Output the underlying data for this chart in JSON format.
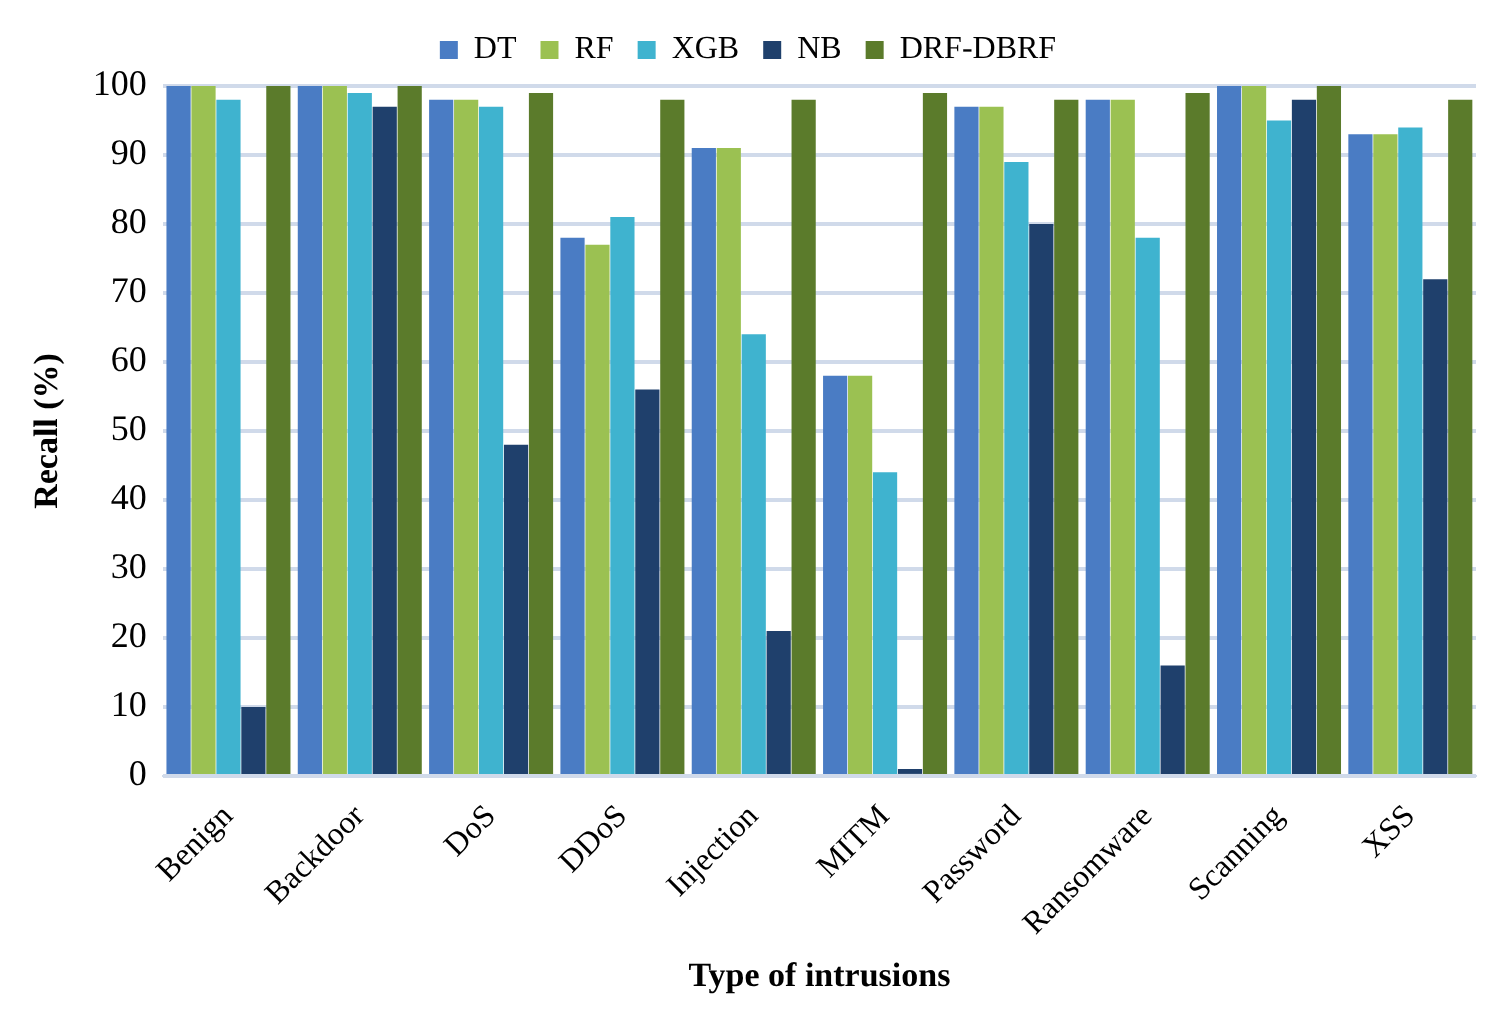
{
  "chart_data": {
    "type": "bar",
    "xlabel": "Type of intrusions",
    "ylabel": "Recall (%)",
    "categories": [
      "Benign",
      "Backdoor",
      "DoS",
      "DDoS",
      "Injection",
      "MITM",
      "Password",
      "Ransomware",
      "Scanning",
      "XSS"
    ],
    "series": [
      {
        "name": "DT",
        "color": "#4a7cc4",
        "values": [
          100,
          100,
          98,
          78,
          91,
          58,
          97,
          98,
          100,
          93
        ]
      },
      {
        "name": "RF",
        "color": "#9bc152",
        "values": [
          100,
          100,
          98,
          77,
          91,
          58,
          97,
          98,
          100,
          93
        ]
      },
      {
        "name": "XGB",
        "color": "#3fb3cf",
        "values": [
          98,
          99,
          97,
          81,
          64,
          44,
          89,
          78,
          95,
          94
        ]
      },
      {
        "name": "NB",
        "color": "#1f406c",
        "values": [
          10,
          97,
          48,
          56,
          21,
          1,
          80,
          16,
          98,
          72
        ]
      },
      {
        "name": "DRF-DBRF",
        "color": "#5b7b2b",
        "values": [
          100,
          100,
          99,
          98,
          98,
          99,
          98,
          99,
          100,
          98
        ]
      }
    ],
    "ylim": [
      0,
      100
    ],
    "yticks": [
      0,
      10,
      20,
      30,
      40,
      50,
      60,
      70,
      80,
      90,
      100
    ],
    "grid": "y",
    "legend": "top"
  }
}
